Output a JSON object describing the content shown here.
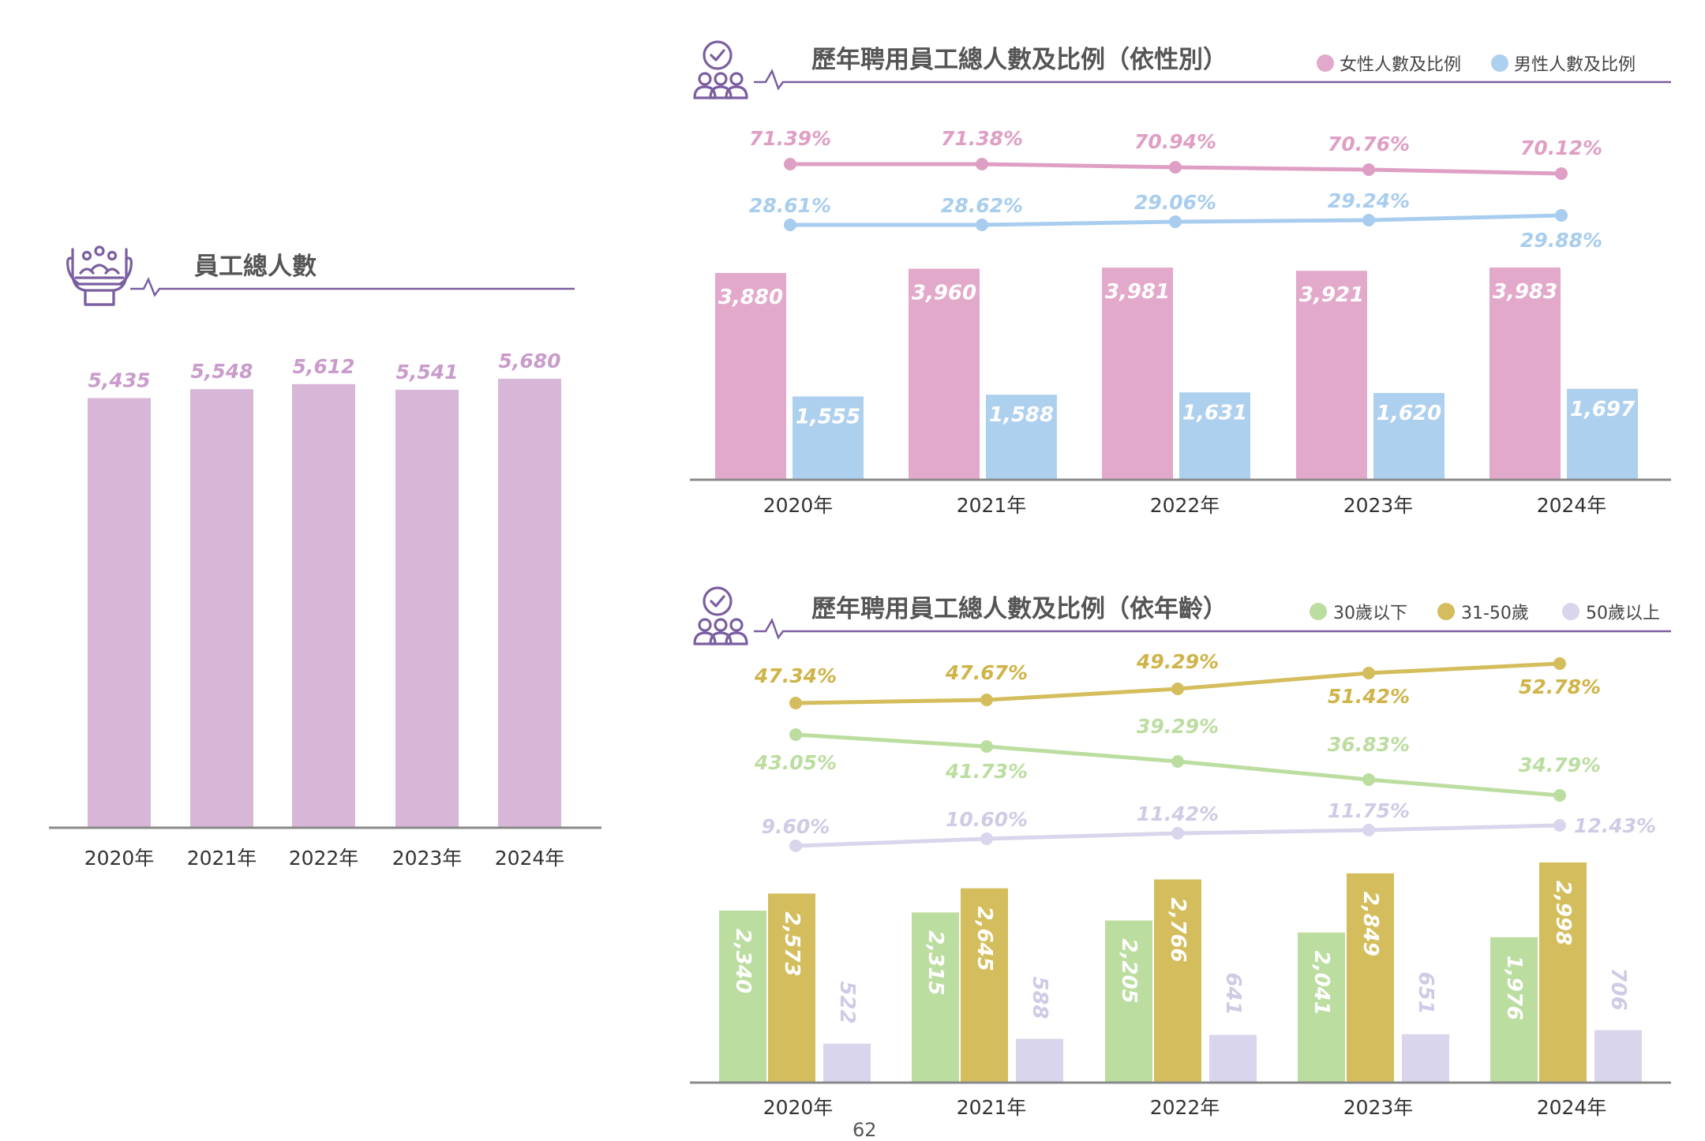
{
  "page_number": "62",
  "colors": {
    "purple_bar": "#d8b6d8",
    "purple_label": "#c99ccb",
    "female": "#e2a9cb",
    "female_line": "#df9fc4",
    "male": "#aed0ef",
    "male_line": "#a8cdee",
    "under30": "#bcdda0",
    "age31_50": "#d4bd5c",
    "age31_50_label": "#cfb44a",
    "over50": "#d9d5ec",
    "over50_label": "#cfcbe5",
    "accent": "#7a5ea0",
    "axis": "#8a8a8a"
  },
  "icons": {
    "total_icon": "hands-holding-people-icon",
    "section_icon": "people-check-badge-icon"
  },
  "chart_data": [
    {
      "type": "bar",
      "title": "員工總人數",
      "categories": [
        "2020年",
        "2021年",
        "2022年",
        "2023年",
        "2024年"
      ],
      "values": [
        5435,
        5548,
        5612,
        5541,
        5680
      ],
      "value_labels": [
        "5,435",
        "5,548",
        "5,612",
        "5,541",
        "5,680"
      ],
      "ylim": [
        0,
        5680
      ],
      "grid": false
    },
    {
      "type": "bar",
      "title": "歷年聘用員工總人數及比例（依性別）",
      "categories": [
        "2020年",
        "2021年",
        "2022年",
        "2023年",
        "2024年"
      ],
      "legend_position": "top-right",
      "series": [
        {
          "name": "女性人數及比例",
          "values": [
            3880,
            3960,
            3981,
            3921,
            3983
          ],
          "value_labels": [
            "3,880",
            "3,960",
            "3,981",
            "3,921",
            "3,983"
          ],
          "ratios": [
            71.39,
            71.38,
            70.94,
            70.76,
            70.12
          ],
          "ratio_labels": [
            "71.39%",
            "71.38%",
            "70.94%",
            "70.76%",
            "70.12%"
          ]
        },
        {
          "name": "男性人數及比例",
          "values": [
            1555,
            1588,
            1631,
            1620,
            1697
          ],
          "value_labels": [
            "1,555",
            "1,588",
            "1,631",
            "1,620",
            "1,697"
          ],
          "ratios": [
            28.61,
            28.62,
            29.06,
            29.24,
            29.88
          ],
          "ratio_labels": [
            "28.61%",
            "28.62%",
            "29.06%",
            "29.24%",
            "29.88%"
          ]
        }
      ],
      "ylim": [
        0,
        3983
      ],
      "grid": false
    },
    {
      "type": "bar",
      "title": "歷年聘用員工總人數及比例（依年齡）",
      "categories": [
        "2020年",
        "2021年",
        "2022年",
        "2023年",
        "2024年"
      ],
      "legend_position": "top-right",
      "series": [
        {
          "name": "30歲以下",
          "values": [
            2340,
            2315,
            2205,
            2041,
            1976
          ],
          "value_labels": [
            "2,340",
            "2,315",
            "2,205",
            "2,041",
            "1,976"
          ],
          "ratios": [
            43.05,
            41.73,
            39.29,
            36.83,
            34.79
          ],
          "ratio_labels": [
            "43.05%",
            "41.73%",
            "39.29%",
            "36.83%",
            "34.79%"
          ]
        },
        {
          "name": "31-50歲",
          "values": [
            2573,
            2645,
            2766,
            2849,
            2998
          ],
          "value_labels": [
            "2,573",
            "2,645",
            "2,766",
            "2,849",
            "2,998"
          ],
          "ratios": [
            47.34,
            47.67,
            49.29,
            51.42,
            52.78
          ],
          "ratio_labels": [
            "47.34%",
            "47.67%",
            "49.29%",
            "51.42%",
            "52.78%"
          ]
        },
        {
          "name": "50歲以上",
          "values": [
            522,
            588,
            641,
            651,
            706
          ],
          "value_labels": [
            "522",
            "588",
            "641",
            "651",
            "706"
          ],
          "ratios": [
            9.6,
            10.6,
            11.42,
            11.75,
            12.43
          ],
          "ratio_labels": [
            "9.60%",
            "10.60%",
            "11.42%",
            "11.75%",
            "12.43%"
          ]
        }
      ],
      "ylim": [
        0,
        2998
      ],
      "grid": false
    }
  ]
}
